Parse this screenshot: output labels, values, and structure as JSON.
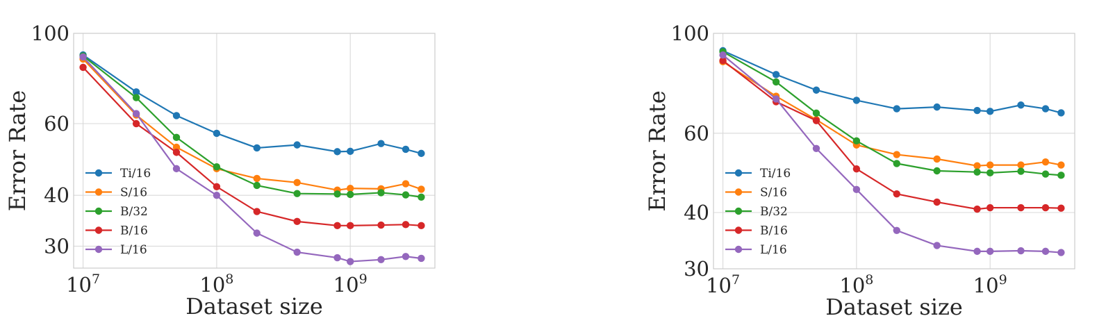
{
  "chart_data": [
    {
      "type": "line",
      "xscale": "log",
      "yscale": "log",
      "xlabel": "Dataset size",
      "ylabel": "Error Rate",
      "xlim": [
        8500000,
        4300000000
      ],
      "ylim": [
        26.5,
        100
      ],
      "xticks": [
        10000000,
        100000000,
        1000000000
      ],
      "xtick_labels": [
        {
          "base": "10",
          "exp": "7"
        },
        {
          "base": "10",
          "exp": "8"
        },
        {
          "base": "10",
          "exp": "9"
        }
      ],
      "yticks": [
        30,
        40,
        60,
        100
      ],
      "ytick_labels": [
        "30",
        "40",
        "60",
        "100"
      ],
      "grid": true,
      "legend_position": "lower-left",
      "x": [
        10000000,
        25000000,
        50000000,
        100000000,
        200000000,
        400000000,
        800000000,
        1000000000,
        1700000000,
        2600000000,
        3400000000
      ],
      "series": [
        {
          "name": "Ti/16",
          "color": "#1f77b4",
          "values": [
            88.5,
            71.8,
            62.8,
            56.8,
            52.3,
            53.2,
            51.2,
            51.3,
            53.6,
            51.9,
            50.7
          ]
        },
        {
          "name": "S/16",
          "color": "#ff7f0e",
          "values": [
            86.5,
            63.0,
            52.5,
            46.5,
            44.0,
            43.0,
            41.2,
            41.6,
            41.5,
            42.7,
            41.4
          ]
        },
        {
          "name": "B/32",
          "color": "#2ca02c",
          "values": [
            88.0,
            69.5,
            55.5,
            47.0,
            42.3,
            40.4,
            40.3,
            40.2,
            40.6,
            40.1,
            39.6
          ]
        },
        {
          "name": "B/16",
          "color": "#d62728",
          "values": [
            82.5,
            60.0,
            51.0,
            42.0,
            36.5,
            34.5,
            33.7,
            33.7,
            33.8,
            33.9,
            33.7
          ]
        },
        {
          "name": "L/16",
          "color": "#9467bd",
          "values": [
            87.5,
            63.5,
            46.5,
            40.0,
            32.3,
            29.0,
            28.1,
            27.5,
            27.8,
            28.3,
            28.0
          ]
        }
      ]
    },
    {
      "type": "line",
      "xscale": "log",
      "yscale": "log",
      "xlabel": "Dataset size",
      "ylabel": "Error Rate",
      "xlim": [
        8500000,
        4300000000
      ],
      "ylim": [
        30,
        100
      ],
      "xticks": [
        10000000,
        100000000,
        1000000000
      ],
      "xtick_labels": [
        {
          "base": "10",
          "exp": "7"
        },
        {
          "base": "10",
          "exp": "8"
        },
        {
          "base": "10",
          "exp": "9"
        }
      ],
      "yticks": [
        30,
        40,
        60,
        100
      ],
      "ytick_labels": [
        "30",
        "40",
        "60",
        "100"
      ],
      "grid": true,
      "legend_position": "lower-left",
      "x": [
        10000000,
        25000000,
        50000000,
        100000000,
        200000000,
        400000000,
        800000000,
        1000000000,
        1700000000,
        2600000000,
        3400000000
      ],
      "series": [
        {
          "name": "Ti/16",
          "color": "#1f77b4",
          "values": [
            91.5,
            81.0,
            74.8,
            71.0,
            68.0,
            68.6,
            67.4,
            67.1,
            69.3,
            68.0,
            66.6
          ]
        },
        {
          "name": "S/16",
          "color": "#ff7f0e",
          "values": [
            86.5,
            72.5,
            64.3,
            56.5,
            53.8,
            52.6,
            50.8,
            51.0,
            51.0,
            51.8,
            51.0
          ]
        },
        {
          "name": "B/32",
          "color": "#2ca02c",
          "values": [
            91.0,
            78.0,
            66.5,
            57.7,
            51.4,
            49.5,
            49.2,
            49.0,
            49.4,
            48.7,
            48.4
          ]
        },
        {
          "name": "B/16",
          "color": "#d62728",
          "values": [
            87.0,
            70.5,
            64.0,
            50.0,
            44.0,
            42.2,
            40.7,
            41.0,
            41.0,
            41.0,
            40.9
          ]
        },
        {
          "name": "L/16",
          "color": "#9467bd",
          "values": [
            89.5,
            71.5,
            55.5,
            45.0,
            36.5,
            33.8,
            32.8,
            32.8,
            32.9,
            32.8,
            32.6
          ]
        }
      ]
    }
  ]
}
